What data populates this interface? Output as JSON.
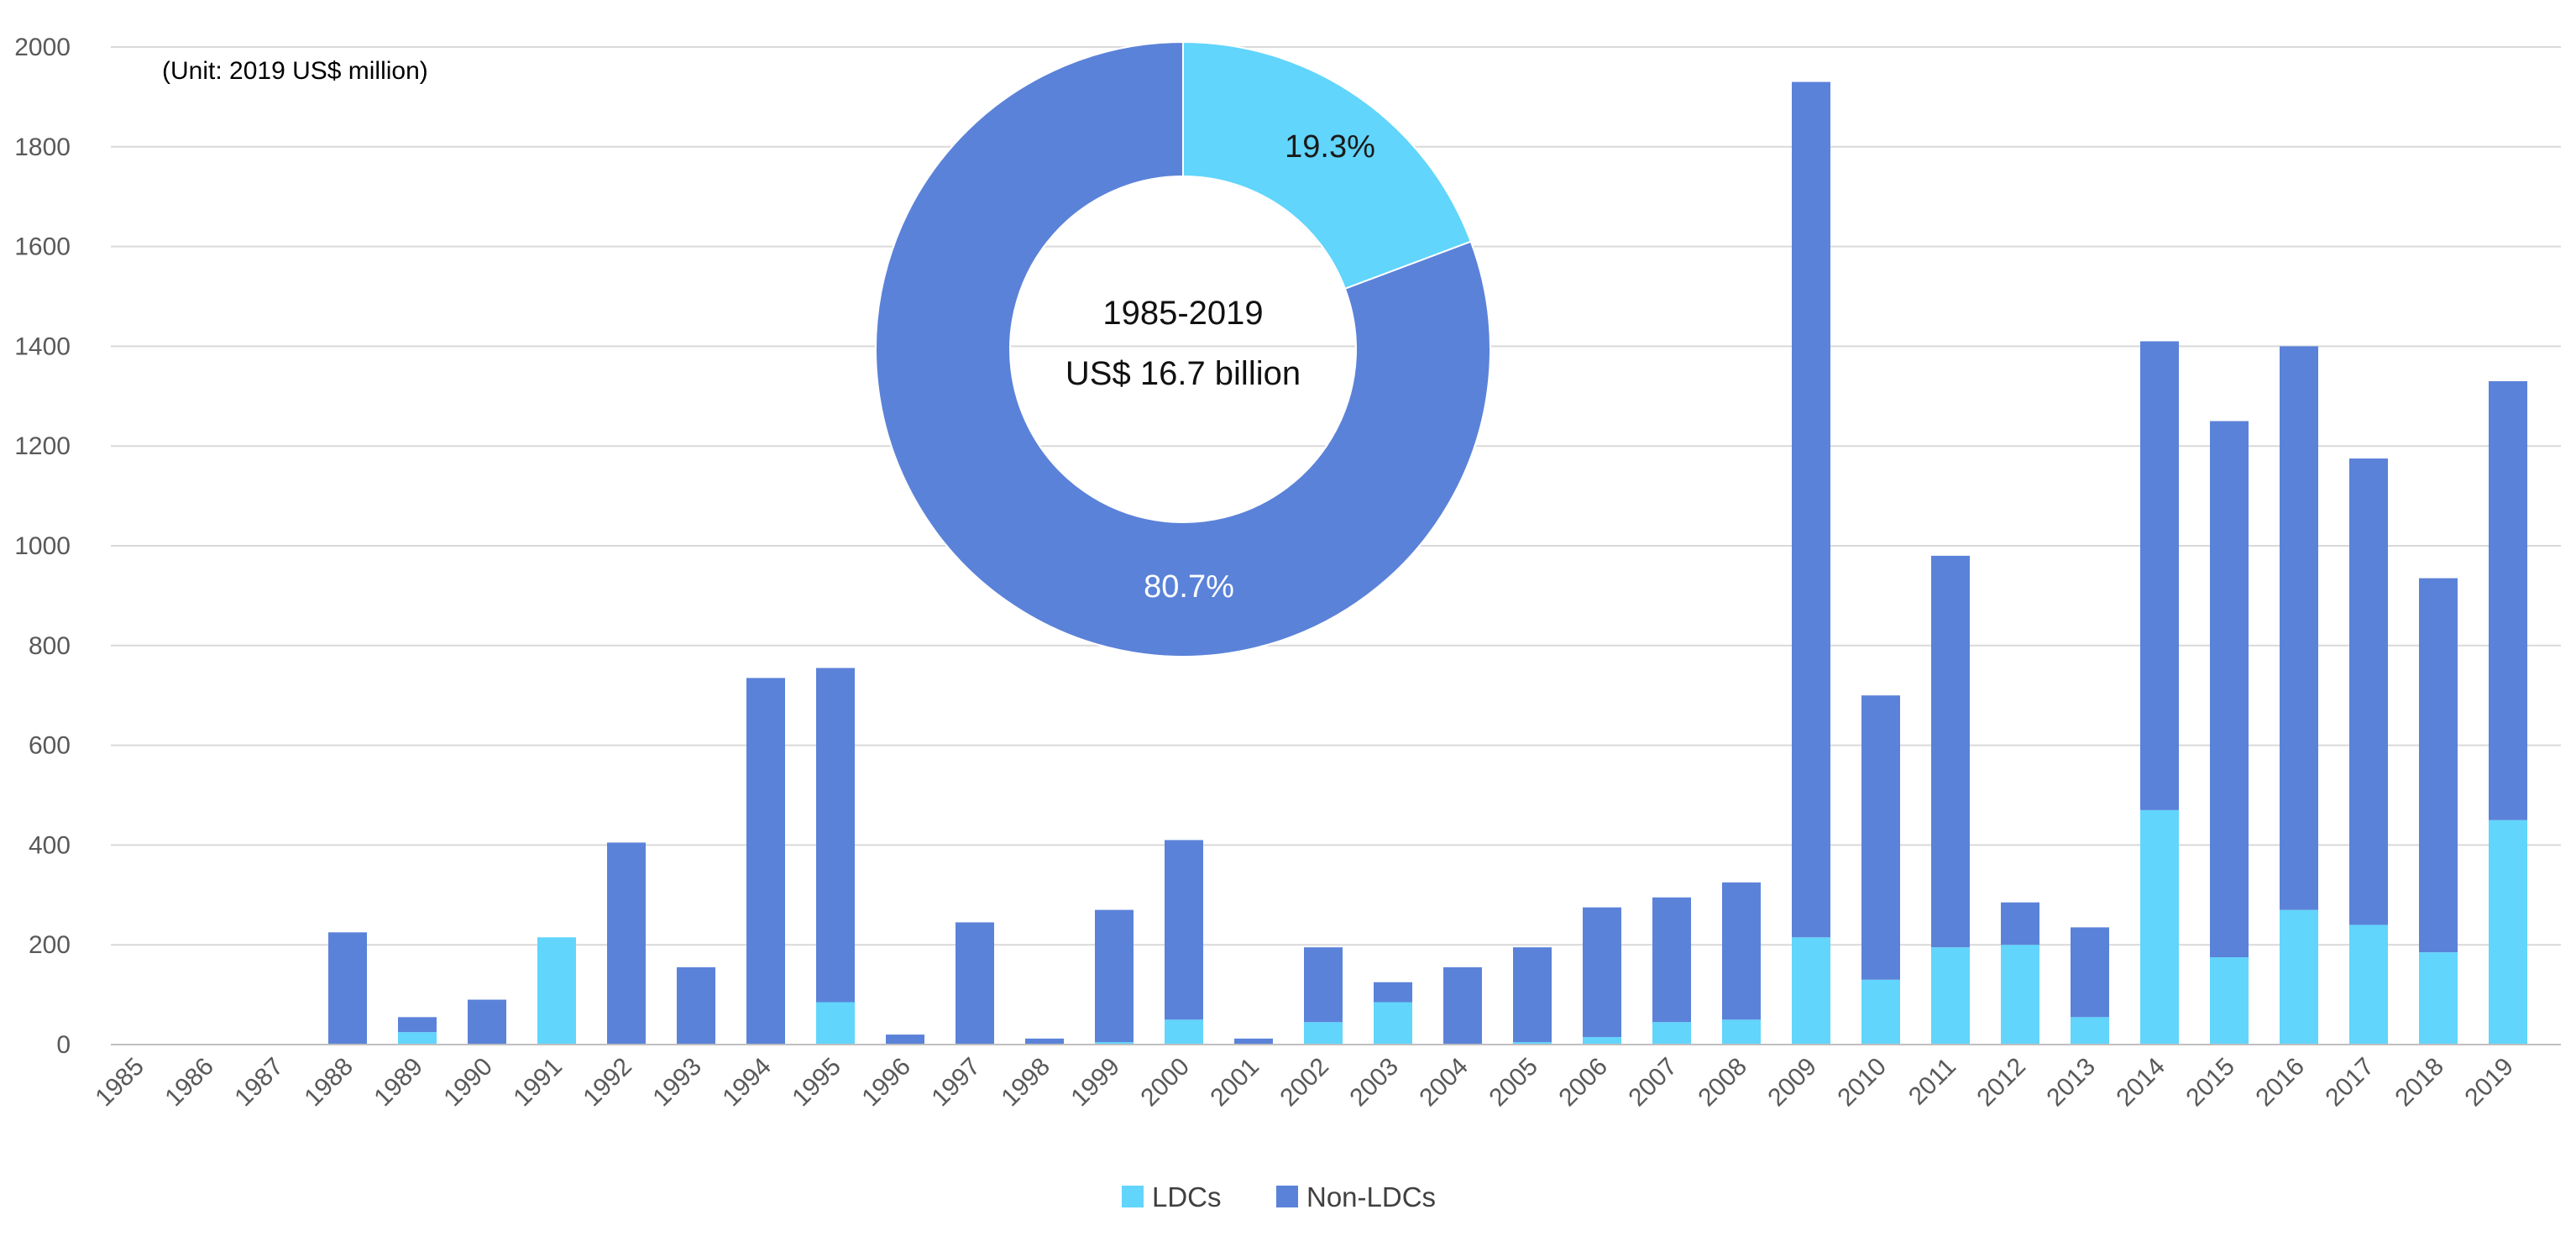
{
  "chart_data": [
    {
      "type": "bar",
      "stacked": true,
      "unit_note": "(Unit: 2019 US$ million)",
      "categories": [
        "1985",
        "1986",
        "1987",
        "1988",
        "1989",
        "1990",
        "1991",
        "1992",
        "1993",
        "1994",
        "1995",
        "1996",
        "1997",
        "1998",
        "1999",
        "2000",
        "2001",
        "2002",
        "2003",
        "2004",
        "2005",
        "2006",
        "2007",
        "2008",
        "2009",
        "2010",
        "2011",
        "2012",
        "2013",
        "2014",
        "2015",
        "2016",
        "2017",
        "2018",
        "2019"
      ],
      "series": [
        {
          "name": "LDCs",
          "color": "#61d5fc",
          "values": [
            0,
            0,
            0,
            0,
            25,
            0,
            215,
            0,
            0,
            0,
            85,
            0,
            0,
            0,
            5,
            50,
            0,
            45,
            85,
            0,
            5,
            15,
            45,
            50,
            215,
            130,
            195,
            200,
            55,
            470,
            175,
            270,
            240,
            185,
            450
          ]
        },
        {
          "name": "Non-LDCs",
          "color": "#5b82d9",
          "values": [
            0,
            0,
            0,
            225,
            30,
            90,
            0,
            405,
            155,
            735,
            670,
            20,
            245,
            12,
            265,
            360,
            12,
            150,
            40,
            155,
            190,
            260,
            250,
            275,
            1715,
            570,
            785,
            85,
            180,
            940,
            1075,
            1130,
            935,
            750,
            880
          ]
        }
      ],
      "ylim": [
        0,
        2000
      ],
      "yticks": [
        "0",
        "200",
        "400",
        "600",
        "800",
        "1000",
        "1200",
        "1400",
        "1600",
        "1800",
        "2000"
      ],
      "grid": true,
      "legend_position": "bottom"
    },
    {
      "type": "pie",
      "donut": true,
      "center_line1": "1985-2019",
      "center_line2": "US$ 16.7 billion",
      "slices": [
        {
          "name": "LDCs",
          "value": 19.3,
          "label": "19.3%",
          "color": "#61d5fc"
        },
        {
          "name": "Non-LDCs",
          "value": 80.7,
          "label": "80.7%",
          "color": "#5b82d9"
        }
      ]
    }
  ]
}
